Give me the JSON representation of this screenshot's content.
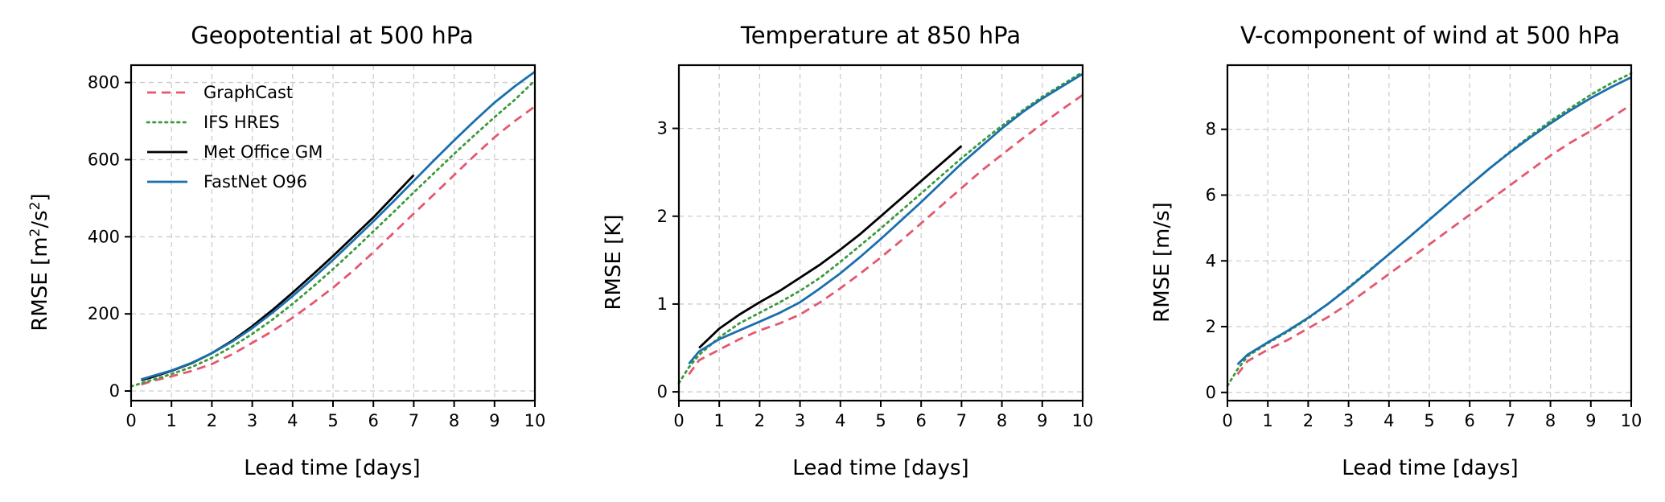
{
  "chart_data": [
    {
      "type": "line",
      "title": "Geopotential at 500 hPa",
      "xlabel": "Lead time [days]",
      "ylabel": "RMSE [m",
      "ylabel_sup1": "2",
      "ylabel_mid": "/s",
      "ylabel_sup2": "2",
      "ylabel_end": "]",
      "xlim": [
        0,
        10
      ],
      "ylim": [
        -25,
        845
      ],
      "xticks": [
        0,
        1,
        2,
        3,
        4,
        5,
        6,
        7,
        8,
        9,
        10
      ],
      "yticks": [
        0,
        200,
        400,
        600,
        800
      ],
      "legend": "top-left",
      "series": [
        {
          "name": "GraphCast",
          "color": "#e4576f",
          "style": "dashed",
          "x": [
            0.25,
            0.5,
            1,
            1.5,
            2,
            2.5,
            3,
            3.5,
            4,
            4.5,
            5,
            5.5,
            6,
            6.5,
            7,
            7.5,
            8,
            8.5,
            9,
            9.5,
            10
          ],
          "y": [
            17,
            25,
            38,
            52,
            70,
            95,
            125,
            155,
            190,
            228,
            268,
            312,
            360,
            410,
            460,
            510,
            560,
            610,
            658,
            700,
            738
          ]
        },
        {
          "name": "IFS HRES",
          "color": "#3b9a3b",
          "style": "dotted",
          "x": [
            0,
            0.25,
            0.5,
            1,
            1.5,
            2,
            2.5,
            3,
            3.5,
            4,
            4.5,
            5,
            5.5,
            6,
            6.5,
            7,
            7.5,
            8,
            8.5,
            9,
            9.5,
            10
          ],
          "y": [
            12,
            20,
            28,
            44,
            62,
            86,
            115,
            148,
            185,
            226,
            270,
            316,
            364,
            414,
            464,
            515,
            565,
            615,
            663,
            710,
            755,
            805
          ]
        },
        {
          "name": "Met Office GM",
          "color": "#000000",
          "style": "solid",
          "x": [
            0.25,
            0.5,
            1,
            1.5,
            2,
            2.5,
            3,
            3.5,
            4,
            4.5,
            5,
            5.5,
            6,
            6.5,
            7
          ],
          "y": [
            28,
            35,
            52,
            72,
            98,
            130,
            168,
            210,
            255,
            302,
            350,
            400,
            450,
            505,
            560
          ]
        },
        {
          "name": "FastNet O96",
          "color": "#1a6fad",
          "style": "solid",
          "x": [
            0.25,
            0.5,
            1,
            1.5,
            2,
            2.5,
            3,
            3.5,
            4,
            4.5,
            5,
            5.5,
            6,
            6.5,
            7,
            7.5,
            8,
            8.5,
            9,
            9.5,
            10
          ],
          "y": [
            30,
            38,
            53,
            73,
            98,
            128,
            163,
            203,
            246,
            292,
            340,
            390,
            440,
            492,
            545,
            598,
            650,
            700,
            748,
            790,
            828
          ]
        }
      ]
    },
    {
      "type": "line",
      "title": "Temperature at 850 hPa",
      "xlabel": "Lead time [days]",
      "ylabel": "RMSE [K]",
      "xlim": [
        0,
        10
      ],
      "ylim": [
        -0.1,
        3.72
      ],
      "xticks": [
        0,
        1,
        2,
        3,
        4,
        5,
        6,
        7,
        8,
        9,
        10
      ],
      "yticks": [
        0,
        1,
        2,
        3
      ],
      "series": [
        {
          "name": "GraphCast",
          "color": "#e4576f",
          "style": "dashed",
          "x": [
            0.25,
            0.5,
            1,
            1.5,
            2,
            2.5,
            3,
            3.5,
            4,
            4.5,
            5,
            5.5,
            6,
            6.5,
            7,
            7.5,
            8,
            8.5,
            9,
            9.5,
            10
          ],
          "y": [
            0.2,
            0.36,
            0.48,
            0.6,
            0.7,
            0.78,
            0.88,
            1.02,
            1.18,
            1.35,
            1.53,
            1.72,
            1.92,
            2.12,
            2.32,
            2.52,
            2.7,
            2.88,
            3.05,
            3.22,
            3.38
          ]
        },
        {
          "name": "IFS HRES",
          "color": "#3b9a3b",
          "style": "dotted",
          "x": [
            0,
            0.25,
            0.5,
            1,
            1.5,
            2,
            2.5,
            3,
            3.5,
            4,
            4.5,
            5,
            5.5,
            6,
            6.5,
            7,
            7.5,
            8,
            8.5,
            9,
            9.5,
            10
          ],
          "y": [
            0.1,
            0.28,
            0.42,
            0.62,
            0.78,
            0.9,
            1.02,
            1.15,
            1.3,
            1.48,
            1.67,
            1.86,
            2.06,
            2.26,
            2.46,
            2.66,
            2.85,
            3.03,
            3.2,
            3.36,
            3.5,
            3.64
          ]
        },
        {
          "name": "Met Office GM",
          "color": "#000000",
          "style": "solid",
          "x": [
            0.5,
            1,
            1.5,
            2,
            2.5,
            3,
            3.5,
            4,
            4.5,
            5,
            5.5,
            6,
            6.5,
            7
          ],
          "y": [
            0.5,
            0.72,
            0.88,
            1.02,
            1.15,
            1.3,
            1.45,
            1.62,
            1.8,
            2.0,
            2.2,
            2.4,
            2.6,
            2.8
          ]
        },
        {
          "name": "FastNet O96",
          "color": "#1a6fad",
          "style": "solid",
          "x": [
            0.25,
            0.5,
            1,
            1.5,
            2,
            2.5,
            3,
            3.5,
            4,
            4.5,
            5,
            5.5,
            6,
            6.5,
            7,
            7.5,
            8,
            8.5,
            9,
            9.5,
            10
          ],
          "y": [
            0.32,
            0.46,
            0.6,
            0.7,
            0.8,
            0.9,
            1.02,
            1.18,
            1.35,
            1.54,
            1.74,
            1.95,
            2.16,
            2.38,
            2.6,
            2.8,
            3.0,
            3.18,
            3.34,
            3.48,
            3.62
          ]
        }
      ]
    },
    {
      "type": "line",
      "title": "V-component of wind at 500 hPa",
      "xlabel": "Lead time [days]",
      "ylabel": "RMSE [m/s]",
      "xlim": [
        0,
        10
      ],
      "ylim": [
        -0.25,
        9.95
      ],
      "xticks": [
        0,
        1,
        2,
        3,
        4,
        5,
        6,
        7,
        8,
        9,
        10
      ],
      "yticks": [
        0,
        2,
        4,
        6,
        8
      ],
      "series": [
        {
          "name": "GraphCast",
          "color": "#e4576f",
          "style": "dashed",
          "x": [
            0.25,
            0.5,
            1,
            1.5,
            2,
            2.5,
            3,
            3.5,
            4,
            4.5,
            5,
            5.5,
            6,
            6.5,
            7,
            7.5,
            8,
            8.5,
            9,
            9.5,
            10
          ],
          "y": [
            0.55,
            0.95,
            1.3,
            1.6,
            1.95,
            2.3,
            2.7,
            3.15,
            3.6,
            4.05,
            4.5,
            4.95,
            5.4,
            5.85,
            6.3,
            6.75,
            7.2,
            7.6,
            7.95,
            8.35,
            8.75
          ]
        },
        {
          "name": "IFS HRES",
          "color": "#3b9a3b",
          "style": "dotted",
          "x": [
            0,
            0.25,
            0.5,
            1,
            1.5,
            2,
            2.5,
            3,
            3.5,
            4,
            4.5,
            5,
            5.5,
            6,
            6.5,
            7,
            7.5,
            8,
            8.5,
            9,
            9.5,
            10
          ],
          "y": [
            0.2,
            0.7,
            1.1,
            1.5,
            1.85,
            2.25,
            2.7,
            3.2,
            3.7,
            4.2,
            4.72,
            5.25,
            5.78,
            6.3,
            6.82,
            7.32,
            7.8,
            8.25,
            8.65,
            9.05,
            9.4,
            9.7
          ]
        },
        {
          "name": "FastNet O96",
          "color": "#1a6fad",
          "style": "solid",
          "x": [
            0.25,
            0.5,
            1,
            1.5,
            2,
            2.5,
            3,
            3.5,
            4,
            4.5,
            5,
            5.5,
            6,
            6.5,
            7,
            7.5,
            8,
            8.5,
            9,
            9.5,
            10
          ],
          "y": [
            0.85,
            1.15,
            1.52,
            1.88,
            2.27,
            2.7,
            3.18,
            3.68,
            4.2,
            4.72,
            5.25,
            5.78,
            6.3,
            6.82,
            7.3,
            7.75,
            8.18,
            8.58,
            8.95,
            9.28,
            9.58
          ]
        }
      ]
    }
  ]
}
